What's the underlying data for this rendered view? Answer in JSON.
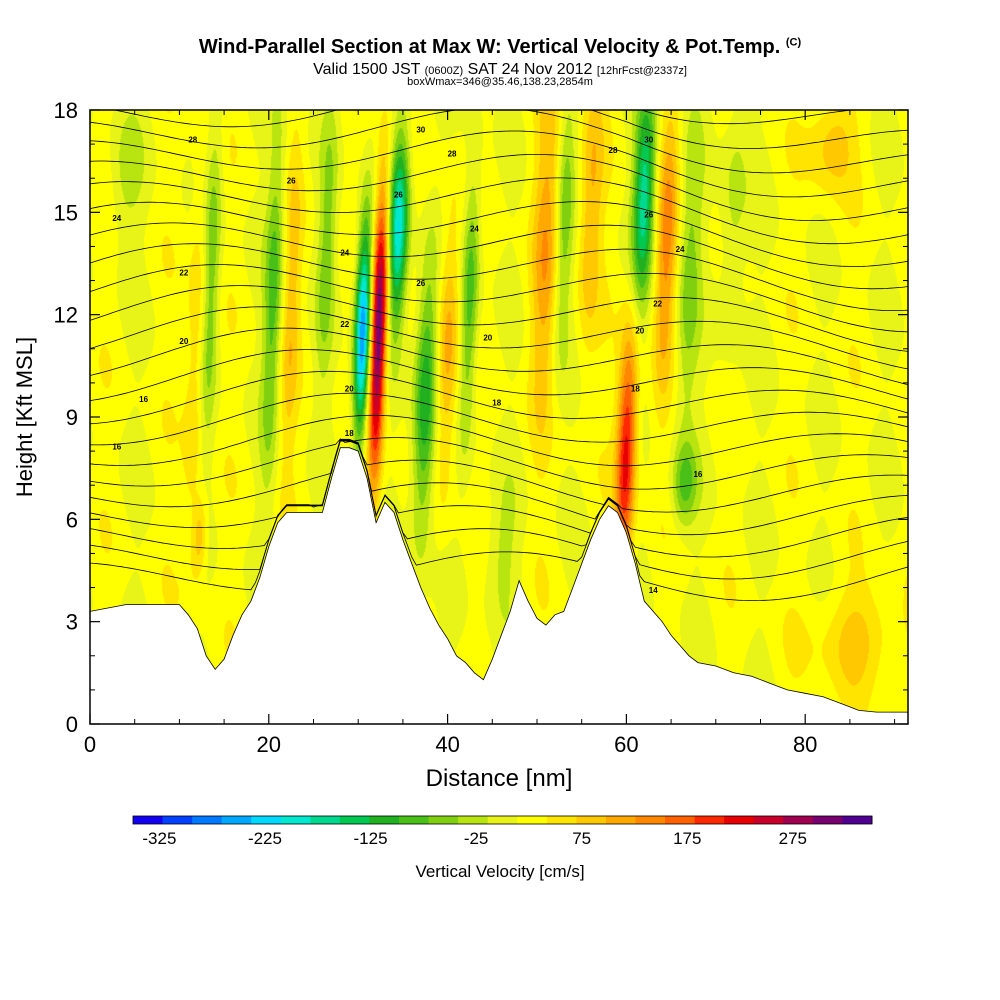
{
  "chart_data": {
    "type": "heatmap",
    "title": "Wind-Parallel Section at Max W: Vertical Velocity & Pot.Temp.",
    "title_mark": "(C)",
    "subtitle_parts": [
      "Valid 1500 JST ",
      "(0600Z)",
      " SAT 24 Nov 2012 ",
      "[12hrFcst@2337z]"
    ],
    "subtitle2": "boxWmax=346@35.46,138.23,2854m",
    "xlabel": "Distance [nm]",
    "ylabel": "Height [Kft MSL]",
    "xlim": [
      0,
      91.5
    ],
    "ylim": [
      0,
      18
    ],
    "xticks": [
      0,
      20,
      40,
      60,
      80
    ],
    "yticks": [
      0,
      3,
      6,
      9,
      12,
      15,
      18
    ],
    "colorbar": {
      "label": "Vertical Velocity [cm/s]",
      "min": -350,
      "max": 350,
      "ticks": [
        "-325",
        "-225",
        "-125",
        "-25",
        "75",
        "175",
        "275"
      ],
      "tick_values": [
        -325,
        -225,
        -125,
        -25,
        75,
        175,
        275
      ],
      "colors": [
        "#1400f0",
        "#0040ff",
        "#0078ff",
        "#00a8ff",
        "#00d8ff",
        "#00e8d0",
        "#00d890",
        "#00c850",
        "#20b020",
        "#48c018",
        "#80d010",
        "#b8e410",
        "#e8f418",
        "#ffff00",
        "#ffe400",
        "#ffc800",
        "#ffa800",
        "#ff8800",
        "#ff6000",
        "#ff2800",
        "#e80000",
        "#c8002a",
        "#a00050",
        "#780070",
        "#500090"
      ]
    },
    "wind_cells": [
      {
        "x": 30.5,
        "z": 11.5,
        "w": -290,
        "sx": 0.9,
        "sz": 3.2
      },
      {
        "x": 32.3,
        "z": 11.5,
        "w": 320,
        "sx": 0.9,
        "sz": 4.2
      },
      {
        "x": 34.5,
        "z": 14.5,
        "w": -220,
        "sx": 1.1,
        "sz": 2.8
      },
      {
        "x": 37.5,
        "z": 9.5,
        "w": -150,
        "sx": 1.3,
        "sz": 4.0
      },
      {
        "x": 40.0,
        "z": 11.0,
        "w": 100,
        "sx": 1.3,
        "sz": 4.0
      },
      {
        "x": 42.5,
        "z": 12.5,
        "w": -110,
        "sx": 1.0,
        "sz": 4.0
      },
      {
        "x": 12.0,
        "z": 11.0,
        "w": 60,
        "sx": 1.2,
        "sz": 6.0
      },
      {
        "x": 12.3,
        "z": 5.5,
        "w": 80,
        "sx": 0.8,
        "sz": 1.2
      },
      {
        "x": 13.5,
        "z": 13.0,
        "w": -90,
        "sx": 1.0,
        "sz": 5.0
      },
      {
        "x": 20.5,
        "z": 12.5,
        "w": -100,
        "sx": 1.0,
        "sz": 5.0
      },
      {
        "x": 22.5,
        "z": 12.0,
        "w": 60,
        "sx": 1.0,
        "sz": 5.0
      },
      {
        "x": 26.5,
        "z": 14.0,
        "w": -70,
        "sx": 1.0,
        "sz": 4.0
      },
      {
        "x": 51.0,
        "z": 14.0,
        "w": 90,
        "sx": 1.5,
        "sz": 5.0
      },
      {
        "x": 53.0,
        "z": 14.5,
        "w": -80,
        "sx": 1.0,
        "sz": 4.0
      },
      {
        "x": 56.0,
        "z": 15.0,
        "w": 80,
        "sx": 1.3,
        "sz": 4.0
      },
      {
        "x": 60.0,
        "z": 8.0,
        "w": 210,
        "sx": 1.1,
        "sz": 3.5
      },
      {
        "x": 62.0,
        "z": 15.5,
        "w": -190,
        "sx": 1.2,
        "sz": 3.0
      },
      {
        "x": 64.5,
        "z": 14.0,
        "w": 110,
        "sx": 1.2,
        "sz": 4.0
      },
      {
        "x": 67.0,
        "z": 13.0,
        "w": -70,
        "sx": 1.3,
        "sz": 4.5
      },
      {
        "x": 66.5,
        "z": 7.0,
        "w": -90,
        "sx": 1.4,
        "sz": 1.2
      },
      {
        "x": 72.0,
        "z": 15.0,
        "w": -50,
        "sx": 1.5,
        "sz": 4.0
      },
      {
        "x": 83.0,
        "z": 17.0,
        "w": 70,
        "sx": 2.5,
        "sz": 1.5
      },
      {
        "x": 86.0,
        "z": 2.5,
        "w": 60,
        "sx": 5.0,
        "sz": 1.5
      },
      {
        "x": 4.0,
        "z": 16.0,
        "w": -40,
        "sx": 2.0,
        "sz": 2.0
      },
      {
        "x": 46.0,
        "z": 5.0,
        "w": -40,
        "sx": 2.0,
        "sz": 2.0
      }
    ],
    "terrain": [
      [
        0,
        3.3
      ],
      [
        4,
        3.5
      ],
      [
        10,
        3.5
      ],
      [
        11,
        3.2
      ],
      [
        12,
        2.8
      ],
      [
        13,
        2.0
      ],
      [
        14,
        1.6
      ],
      [
        15,
        1.9
      ],
      [
        16,
        2.6
      ],
      [
        17,
        3.2
      ],
      [
        18,
        3.6
      ],
      [
        19,
        4.3
      ],
      [
        20,
        5.2
      ],
      [
        21,
        5.9
      ],
      [
        22,
        6.2
      ],
      [
        26,
        6.2
      ],
      [
        27,
        7.2
      ],
      [
        28,
        8.1
      ],
      [
        29,
        8.1
      ],
      [
        30,
        8.0
      ],
      [
        31,
        7.2
      ],
      [
        32,
        5.9
      ],
      [
        33,
        6.5
      ],
      [
        34,
        6.2
      ],
      [
        35,
        5.4
      ],
      [
        36,
        4.7
      ],
      [
        37,
        4.0
      ],
      [
        38,
        3.4
      ],
      [
        39,
        2.9
      ],
      [
        40,
        2.5
      ],
      [
        41,
        2.0
      ],
      [
        42,
        1.8
      ],
      [
        43,
        1.5
      ],
      [
        44,
        1.3
      ],
      [
        45,
        1.9
      ],
      [
        46,
        2.6
      ],
      [
        47,
        3.3
      ],
      [
        48,
        4.2
      ],
      [
        49,
        3.6
      ],
      [
        50,
        3.1
      ],
      [
        51,
        2.9
      ],
      [
        52,
        3.2
      ],
      [
        53,
        3.3
      ],
      [
        54,
        4.0
      ],
      [
        55,
        4.7
      ],
      [
        56,
        5.4
      ],
      [
        57,
        6.0
      ],
      [
        58,
        6.4
      ],
      [
        59,
        6.2
      ],
      [
        60,
        5.6
      ],
      [
        61,
        4.7
      ],
      [
        62,
        3.6
      ],
      [
        63,
        3.3
      ],
      [
        64,
        3.0
      ],
      [
        65,
        2.6
      ],
      [
        66,
        2.3
      ],
      [
        67,
        2.0
      ],
      [
        68,
        1.8
      ],
      [
        70,
        1.7
      ],
      [
        72,
        1.5
      ],
      [
        74,
        1.4
      ],
      [
        76,
        1.2
      ],
      [
        78,
        1.0
      ],
      [
        80,
        0.9
      ],
      [
        82,
        0.8
      ],
      [
        84,
        0.6
      ],
      [
        86,
        0.4
      ],
      [
        88,
        0.35
      ],
      [
        91.5,
        0.35
      ]
    ],
    "isentrope_labels": [
      {
        "text": "14",
        "x": 63,
        "z": 3.9
      },
      {
        "text": "16",
        "x": 3,
        "z": 8.1
      },
      {
        "text": "16",
        "x": 68,
        "z": 7.3
      },
      {
        "text": "16",
        "x": 6,
        "z": 9.5
      },
      {
        "text": "18",
        "x": 45.5,
        "z": 9.4
      },
      {
        "text": "18",
        "x": 61,
        "z": 9.8
      },
      {
        "text": "18",
        "x": 29,
        "z": 8.5
      },
      {
        "text": "20",
        "x": 10.5,
        "z": 11.2
      },
      {
        "text": "20",
        "x": 44.5,
        "z": 11.3
      },
      {
        "text": "20",
        "x": 61.5,
        "z": 11.5
      },
      {
        "text": "20",
        "x": 29,
        "z": 9.8
      },
      {
        "text": "22",
        "x": 10.5,
        "z": 13.2
      },
      {
        "text": "22",
        "x": 63.5,
        "z": 12.3
      },
      {
        "text": "22",
        "x": 28.5,
        "z": 11.7
      },
      {
        "text": "24",
        "x": 3,
        "z": 14.8
      },
      {
        "text": "24",
        "x": 43,
        "z": 14.5
      },
      {
        "text": "24",
        "x": 66,
        "z": 13.9
      },
      {
        "text": "24",
        "x": 28.5,
        "z": 13.8
      },
      {
        "text": "26",
        "x": 22.5,
        "z": 15.9
      },
      {
        "text": "26",
        "x": 37,
        "z": 12.9
      },
      {
        "text": "26",
        "x": 62.5,
        "z": 14.9
      },
      {
        "text": "26",
        "x": 34.5,
        "z": 15.5
      },
      {
        "text": "28",
        "x": 11.5,
        "z": 17.1
      },
      {
        "text": "28",
        "x": 40.5,
        "z": 16.7
      },
      {
        "text": "28",
        "x": 58.5,
        "z": 16.8
      },
      {
        "text": "30",
        "x": 37,
        "z": 17.4
      },
      {
        "text": "30",
        "x": 62.5,
        "z": 17.1
      }
    ]
  }
}
